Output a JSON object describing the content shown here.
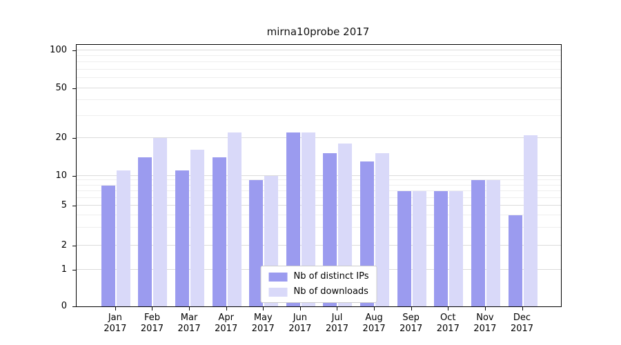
{
  "chart_data": {
    "type": "bar",
    "title": "mirna10probe 2017",
    "categories": [
      "Jan",
      "Feb",
      "Mar",
      "Apr",
      "May",
      "Jun",
      "Jul",
      "Aug",
      "Sep",
      "Oct",
      "Nov",
      "Dec"
    ],
    "category_year": "2017",
    "series": [
      {
        "name": "Nb of distinct IPs",
        "color": "#9b9bef",
        "values": [
          8,
          14,
          11,
          14,
          9,
          22,
          15,
          13,
          7,
          7,
          9,
          4
        ]
      },
      {
        "name": "Nb of downloads",
        "color": "#d9d9f9",
        "values": [
          11,
          20,
          16,
          22,
          10,
          22,
          18,
          15,
          7,
          7,
          9,
          21
        ]
      }
    ],
    "y_axis": {
      "scale": "log",
      "major_ticks": [
        0,
        1,
        2,
        5,
        10,
        20,
        50,
        100
      ],
      "minor_ticks": [
        3,
        4,
        6,
        7,
        8,
        9,
        30,
        40,
        60,
        70,
        80,
        90
      ],
      "ylim": [
        0,
        105
      ]
    },
    "legend": {
      "position": "lower center"
    },
    "grid": true
  }
}
